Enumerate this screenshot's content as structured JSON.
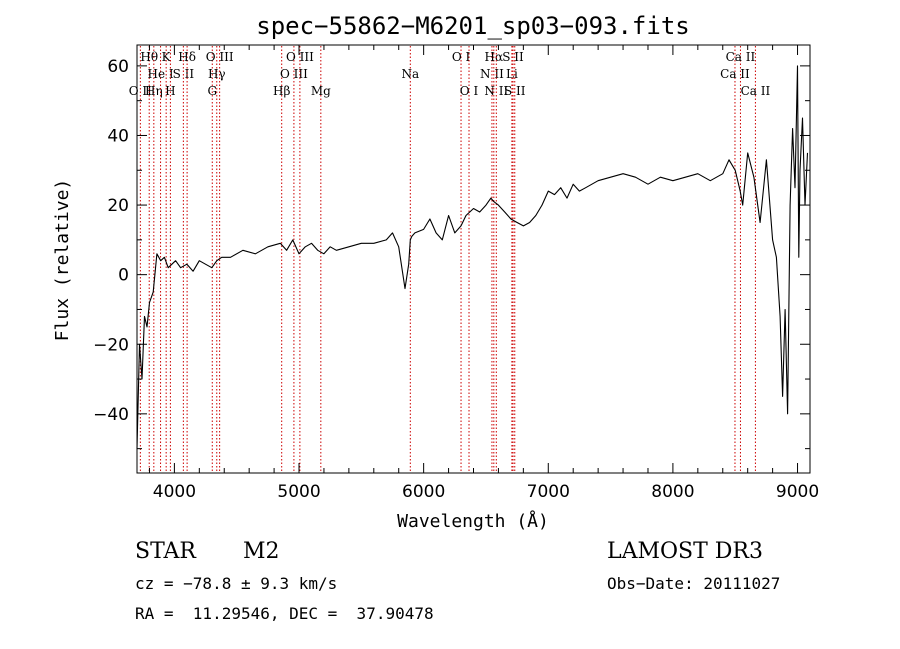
{
  "chart_data": {
    "type": "line",
    "title": "spec−55862−M6201_sp03−093.fits",
    "xlabel": "Wavelength (Å)",
    "ylabel": "Flux (relative)",
    "xlim": [
      3700,
      9100
    ],
    "ylim": [
      -57,
      66
    ],
    "xticks": [
      4000,
      5000,
      6000,
      7000,
      8000,
      9000
    ],
    "xtick_labels": [
      "4000",
      "5000",
      "6000",
      "7000",
      "8000",
      "9000"
    ],
    "yticks": [
      -40,
      -20,
      0,
      20,
      40,
      60
    ],
    "ytick_labels": [
      "−40",
      "−20",
      "0",
      "20",
      "40",
      "60"
    ],
    "grid": false,
    "line_color": "#000000",
    "marker_color": "#cc0000",
    "spectrum": {
      "x": [
        3700,
        3720,
        3740,
        3760,
        3780,
        3800,
        3830,
        3860,
        3890,
        3920,
        3950,
        3980,
        4010,
        4050,
        4100,
        4150,
        4200,
        4250,
        4300,
        4340,
        4380,
        4450,
        4550,
        4650,
        4750,
        4850,
        4900,
        4950,
        5000,
        5050,
        5100,
        5150,
        5200,
        5250,
        5300,
        5400,
        5500,
        5600,
        5700,
        5750,
        5800,
        5850,
        5880,
        5893,
        5905,
        5930,
        6000,
        6050,
        6100,
        6150,
        6200,
        6250,
        6300,
        6340,
        6400,
        6450,
        6500,
        6540,
        6563,
        6600,
        6650,
        6700,
        6750,
        6800,
        6850,
        6900,
        6950,
        7000,
        7050,
        7100,
        7150,
        7200,
        7250,
        7300,
        7400,
        7500,
        7600,
        7700,
        7800,
        7900,
        8000,
        8100,
        8200,
        8300,
        8400,
        8450,
        8500,
        8540,
        8560,
        8600,
        8650,
        8700,
        8750,
        8800,
        8830,
        8860,
        8880,
        8900,
        8920,
        8940,
        8960,
        8980,
        9000,
        9010,
        9020,
        9040,
        9060,
        9080
      ],
      "y": [
        -50,
        -20,
        -30,
        -12,
        -15,
        -8,
        -5,
        6,
        4,
        5,
        2,
        3,
        4,
        2,
        3,
        1,
        4,
        3,
        2,
        4,
        5,
        5,
        7,
        6,
        8,
        9,
        7,
        10,
        6,
        8,
        9,
        7,
        6,
        8,
        7,
        8,
        9,
        9,
        10,
        12,
        8,
        -4,
        3,
        10,
        11,
        12,
        13,
        16,
        12,
        10,
        17,
        12,
        14,
        17,
        19,
        18,
        20,
        22,
        21,
        20,
        18,
        16,
        15,
        14,
        15,
        17,
        20,
        24,
        23,
        25,
        22,
        26,
        24,
        25,
        27,
        28,
        29,
        28,
        26,
        28,
        27,
        28,
        29,
        27,
        29,
        33,
        30,
        24,
        20,
        35,
        28,
        15,
        33,
        10,
        5,
        -12,
        -35,
        -10,
        -40,
        20,
        42,
        25,
        60,
        5,
        30,
        45,
        20,
        35
      ]
    },
    "lines": [
      {
        "label": "O II",
        "x": 3727,
        "row": 2
      },
      {
        "label": "Hθ",
        "x": 3798,
        "row": 0
      },
      {
        "label": "Hη",
        "x": 3835,
        "row": 2
      },
      {
        "label": "He I",
        "x": 3889,
        "row": 1
      },
      {
        "label": "K",
        "x": 3934,
        "row": 0
      },
      {
        "label": "H",
        "x": 3968,
        "row": 2
      },
      {
        "label": "S II",
        "x": 4072,
        "row": 1
      },
      {
        "label": "Hδ",
        "x": 4102,
        "row": 0
      },
      {
        "label": "G",
        "x": 4304,
        "row": 2
      },
      {
        "label": "Hγ",
        "x": 4340,
        "row": 1
      },
      {
        "label": "O III",
        "x": 4363,
        "row": 0
      },
      {
        "label": "Hβ",
        "x": 4861,
        "row": 2
      },
      {
        "label": "O III",
        "x": 4959,
        "row": 1
      },
      {
        "label": "O III",
        "x": 5007,
        "row": 0
      },
      {
        "label": "Mg",
        "x": 5175,
        "row": 2
      },
      {
        "label": "Na",
        "x": 5893,
        "row": 1
      },
      {
        "label": "O I",
        "x": 6300,
        "row": 0
      },
      {
        "label": "O I",
        "x": 6364,
        "row": 2
      },
      {
        "label": "N II",
        "x": 6548,
        "row": 1
      },
      {
        "label": "Hα",
        "x": 6563,
        "row": 0
      },
      {
        "label": "N II",
        "x": 6583,
        "row": 2
      },
      {
        "label": "Li",
        "x": 6708,
        "row": 1
      },
      {
        "label": "S II",
        "x": 6717,
        "row": 0
      },
      {
        "label": "S II",
        "x": 6731,
        "row": 2
      },
      {
        "label": "Ca II",
        "x": 8498,
        "row": 1
      },
      {
        "label": "Ca II",
        "x": 8542,
        "row": 0
      },
      {
        "label": "Ca II",
        "x": 8662,
        "row": 2
      }
    ]
  },
  "info": {
    "object_class": "STAR",
    "subclass": "M2",
    "survey": "LAMOST DR3",
    "cz": "cz = −78.8 ± 9.3 km/s",
    "obs_date": "Obs−Date: 20111027",
    "coords": "RA =  11.29546, DEC =  37.90478"
  }
}
